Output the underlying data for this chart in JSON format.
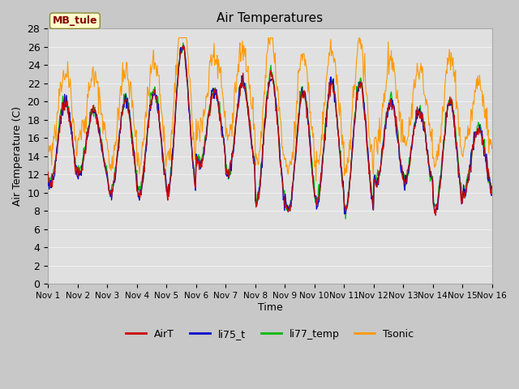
{
  "title": "Air Temperatures",
  "ylabel": "Air Temperature (C)",
  "xlabel": "Time",
  "site_label": "MB_tule",
  "ylim": [
    0,
    28
  ],
  "xlim": [
    0,
    15
  ],
  "tick_labels": [
    "Nov 1",
    "Nov 2",
    "Nov 3",
    "Nov 4",
    "Nov 5",
    "Nov 6",
    "Nov 7",
    "Nov 8",
    "Nov 9",
    "Nov 10",
    "Nov 11",
    "Nov 12",
    "Nov 13",
    "Nov 14",
    "Nov 15",
    "Nov 16"
  ],
  "yticks": [
    0,
    2,
    4,
    6,
    8,
    10,
    12,
    14,
    16,
    18,
    20,
    22,
    24,
    26,
    28
  ],
  "fig_bg_color": "#c8c8c8",
  "ax_bg_color": "#e0e0e0",
  "grid_color": "#f0f0f0",
  "colors": {
    "AirT": "#cc0000",
    "li75_t": "#0000cc",
    "li77_temp": "#00bb00",
    "Tsonic": "#ff9900"
  },
  "legend_entries": [
    "AirT",
    "li75_t",
    "li77_temp",
    "Tsonic"
  ]
}
